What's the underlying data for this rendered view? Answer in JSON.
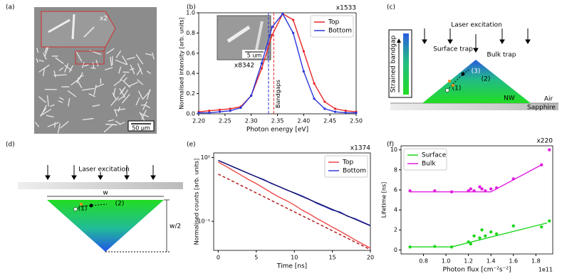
{
  "panels": {
    "labels": [
      "(a)",
      "(b)",
      "(c)",
      "(d)",
      "(e)",
      "(f)"
    ],
    "a": {
      "zoom": "x2",
      "scale": "50 µm"
    },
    "c": {
      "excitation": "Laser excitation",
      "surface_trap": "Surface trap",
      "bulk_trap": "Bulk trap",
      "step3": "(3)",
      "step2": "(2)",
      "step1": "(1)",
      "nw": "NW",
      "air": "Air",
      "substrate": "Sapphire",
      "bar_label": "Strained bandgap"
    },
    "d": {
      "excitation": "Laser excitation",
      "width": "w",
      "height": "w/2",
      "step1": "(1)",
      "step2": "(2)"
    }
  },
  "chart_data": [
    {
      "type": "line",
      "xlabel": "Photon energy [eV]",
      "ylabel": "Normalised intensity [arb. units]",
      "annotation": "x1533",
      "inset_scale": "5 um",
      "inset_zoom": "x8342",
      "vline_label": "Bandgaps",
      "xlim": [
        2.2,
        2.5
      ],
      "xticks": [
        {
          "value": 2.2,
          "label": "2.20"
        },
        {
          "value": 2.25,
          "label": "2.25"
        },
        {
          "value": 2.3,
          "label": "2.30"
        },
        {
          "value": 2.35,
          "label": "2.35"
        },
        {
          "value": 2.4,
          "label": "2.40"
        },
        {
          "value": 2.45,
          "label": "2.45"
        },
        {
          "value": 2.5,
          "label": "2.50"
        }
      ],
      "ylim": [
        0,
        1.0
      ],
      "yticks": [
        {
          "value": 0,
          "label": "0.0"
        },
        0.2,
        0.4,
        0.6,
        0.8,
        {
          "value": 1,
          "label": "1.0"
        }
      ],
      "legend": "upper right",
      "markers": true,
      "x": [
        2.2,
        2.22,
        2.24,
        2.26,
        2.28,
        2.3,
        2.32,
        2.34,
        2.36,
        2.38,
        2.4,
        2.42,
        2.44,
        2.46,
        2.48,
        2.5
      ],
      "series": [
        {
          "name": "Top",
          "color": "#e8262a",
          "values": [
            0.02,
            0.03,
            0.04,
            0.05,
            0.07,
            0.18,
            0.45,
            0.78,
            0.99,
            0.93,
            0.62,
            0.3,
            0.12,
            0.05,
            0.03,
            0.02
          ]
        },
        {
          "name": "Bottom",
          "color": "#2a35d8",
          "values": [
            0.01,
            0.01,
            0.02,
            0.03,
            0.06,
            0.18,
            0.5,
            0.86,
            0.99,
            0.8,
            0.42,
            0.15,
            0.05,
            0.02,
            0.01,
            0.01
          ]
        }
      ],
      "vlines": [
        {
          "x": 2.333,
          "color": "#2a35d8"
        },
        {
          "x": 2.343,
          "color": "#e8262a"
        }
      ]
    },
    {
      "type": "line",
      "xlabel": "Time [ns]",
      "ylabel": "Normalised counts [arb. units]",
      "annotation": "x1374",
      "xlim": [
        -0.6,
        20
      ],
      "xticks": [
        0,
        5,
        10,
        15,
        20
      ],
      "log_y": true,
      "ylim": [
        0.035,
        1.18
      ],
      "yticks": [
        {
          "value": 0.1,
          "label": "10⁻¹"
        },
        {
          "value": 1,
          "label": "10⁰"
        }
      ],
      "legend": "upper right",
      "markers": false,
      "x": [
        0,
        1,
        2,
        3,
        4,
        5,
        6,
        7,
        8,
        9,
        10,
        11,
        12,
        13,
        14,
        15,
        16,
        17,
        18,
        19,
        20
      ],
      "series": [
        {
          "name": "Top",
          "color": "#f04848",
          "values": [
            0.85,
            0.73,
            0.62,
            0.53,
            0.45,
            0.39,
            0.33,
            0.28,
            0.24,
            0.21,
            0.18,
            0.15,
            0.13,
            0.11,
            0.095,
            0.081,
            0.07,
            0.06,
            0.051,
            0.044,
            0.038
          ]
        },
        {
          "name": "Bottom",
          "color": "#3a3ae0",
          "values": [
            0.9,
            0.8,
            0.71,
            0.63,
            0.56,
            0.5,
            0.45,
            0.39,
            0.35,
            0.31,
            0.28,
            0.25,
            0.22,
            0.19,
            0.17,
            0.15,
            0.14,
            0.12,
            0.11,
            0.097,
            0.086
          ]
        }
      ],
      "fit_lines": [
        {
          "color": "#b01010",
          "dashed": true,
          "x": [
            0,
            20
          ],
          "values": [
            0.55,
            0.036
          ]
        },
        {
          "color": "#10106a",
          "dashed": false,
          "x": [
            0,
            20
          ],
          "values": [
            0.9,
            0.085
          ]
        }
      ]
    },
    {
      "type": "scatter",
      "xlabel": "Photon flux [cm⁻²s⁻²]",
      "ylabel": "Lifetime [ns]",
      "annotation": "x220",
      "x_offset_label": "1e11",
      "xlim": [
        0.6,
        1.95
      ],
      "xticks": [
        0.8,
        {
          "value": 1,
          "label": "1.0"
        },
        1.2,
        1.4,
        1.6,
        1.8
      ],
      "ylim": [
        -0.4,
        10.4
      ],
      "yticks": [
        0,
        2,
        4,
        6,
        8,
        10
      ],
      "legend": "upper left",
      "markers": true,
      "x": [
        0.68,
        0.9,
        1.05,
        1.2,
        1.22,
        1.25,
        1.3,
        1.32,
        1.35,
        1.4,
        1.45,
        1.6,
        1.85,
        1.92
      ],
      "series": [
        {
          "name": "Surface",
          "color": "#1fd61f",
          "values": [
            0.3,
            0.35,
            0.3,
            0.8,
            0.6,
            1.4,
            1.2,
            2.0,
            1.4,
            1.8,
            1.6,
            2.4,
            2.3,
            2.9
          ]
        },
        {
          "name": "Bulk",
          "color": "#e01ee0",
          "values": [
            5.9,
            5.9,
            5.8,
            5.9,
            6.1,
            5.9,
            6.3,
            6.1,
            5.9,
            6.1,
            6.2,
            7.1,
            8.5,
            10.0
          ]
        }
      ],
      "fit_lines": [
        {
          "color": "#1fd61f",
          "dashed": false,
          "x": [
            0.68,
            1.05,
            1.9
          ],
          "values": [
            0.3,
            0.3,
            2.7
          ]
        },
        {
          "color": "#e01ee0",
          "dashed": false,
          "x": [
            0.68,
            1.4,
            1.85
          ],
          "values": [
            5.8,
            5.8,
            8.5
          ]
        }
      ]
    }
  ]
}
